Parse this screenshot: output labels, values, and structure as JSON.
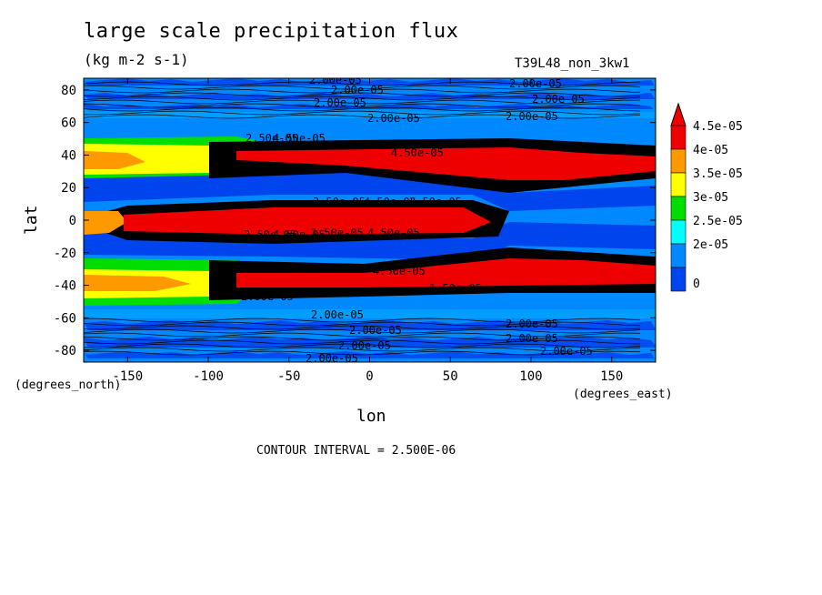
{
  "chart_data": {
    "type": "contour",
    "title": "large scale precipitation flux",
    "subtitle": "(kg m-2 s-1)",
    "run_label": "T39L48_non_3kw1",
    "xlabel": "lon",
    "ylabel": "lat",
    "x_units": "(degrees_east)",
    "y_units": "(degrees_north)",
    "xlim": [
      -177.2,
      177.2
    ],
    "ylim": [
      -87.2,
      87.2
    ],
    "x_ticks": [
      "-150",
      "-100",
      "-50",
      "0",
      "50",
      "100",
      "150"
    ],
    "y_ticks": [
      "80",
      "60",
      "40",
      "20",
      "0",
      "-20",
      "-40",
      "-60",
      "-80"
    ],
    "contour_interval_text": "CONTOUR INTERVAL = 2.500E-06",
    "colorbar": {
      "labels": [
        "4.5e-05",
        "4e-05",
        "3.5e-05",
        "3e-05",
        "2.5e-05",
        "2e-05",
        "0"
      ],
      "colors": [
        "#ee0000",
        "#ff9900",
        "#ffff00",
        "#00dd00",
        "#00ffff",
        "#0088ff",
        "#0044ee"
      ],
      "extend_arrow_color": "#ee0000"
    },
    "contour_labels": [
      "2.00e-05",
      "2.00e-05",
      "2.00e-05",
      "2.00e-05",
      "2.00e-05",
      "2.00e-05",
      "2.00e-05",
      "2.50e-05",
      "1.50e-05",
      "4.50e-05",
      "4.50e-05",
      "3.50e-05",
      "4.50e-05",
      "3.50e-05",
      "2.50e-05",
      "1.50e-05",
      "4.50e-05",
      "4.50e-05",
      "4.50e-05",
      "4.50e-05",
      "1.50e-05",
      "2.00e-05",
      "2.00e-05",
      "2.00e-05",
      "2.00e-05",
      "2.00e-05",
      "2.00e-05",
      "2.00e-05",
      "2.00e-05"
    ]
  }
}
